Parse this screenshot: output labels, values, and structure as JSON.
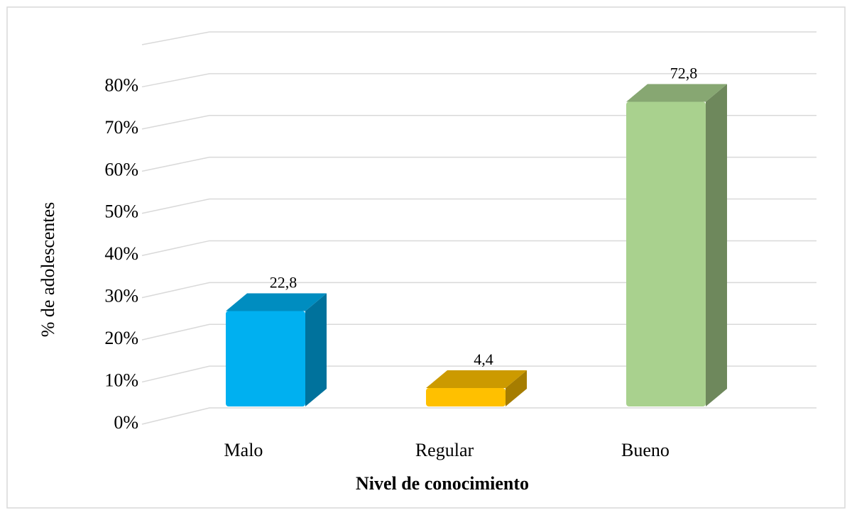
{
  "chart_data": {
    "type": "bar3d",
    "categories": [
      "Malo",
      "Regular",
      "Bueno"
    ],
    "values": [
      22.8,
      4.4,
      72.8
    ],
    "value_labels": [
      "22,8",
      "4,4",
      "72,8"
    ],
    "colors": [
      "#00b0f0",
      "#ffc000",
      "#a9d18e"
    ],
    "x_label": "Nivel de conocimiento",
    "y_label": "% de  adolescentes",
    "ylim": [
      0,
      90
    ],
    "yticks": [
      {
        "value": 0,
        "label": "0%"
      },
      {
        "value": 10,
        "label": "10%"
      },
      {
        "value": 20,
        "label": "20%"
      },
      {
        "value": 30,
        "label": "30%"
      },
      {
        "value": 40,
        "label": "40%"
      },
      {
        "value": 50,
        "label": "50%"
      },
      {
        "value": 60,
        "label": "60%"
      },
      {
        "value": 70,
        "label": "70%"
      },
      {
        "value": 80,
        "label": "80%"
      }
    ],
    "grid": true
  }
}
